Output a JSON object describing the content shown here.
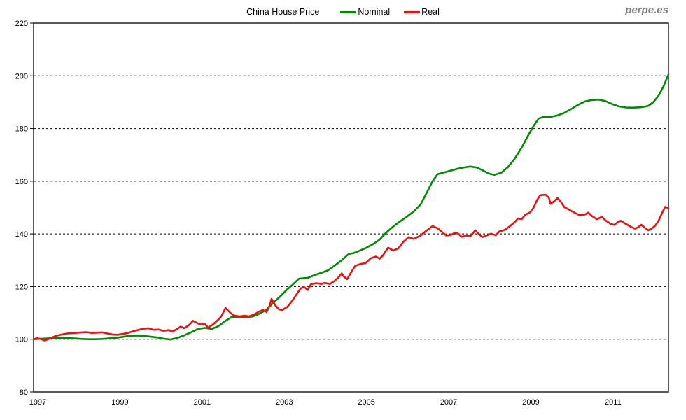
{
  "page": {
    "watermark": "perpe.es"
  },
  "chart_data": {
    "type": "line",
    "title": "China House Price",
    "xlabel": "",
    "ylabel": "",
    "x_range": [
      1997,
      2012.45
    ],
    "y_range": [
      80,
      220
    ],
    "x_ticks": [
      1997,
      1999,
      2001,
      2003,
      2005,
      2007,
      2009,
      2011
    ],
    "y_ticks": [
      80,
      100,
      120,
      140,
      160,
      180,
      200,
      220
    ],
    "grid": "horizontal-dashed",
    "legend_position": "top",
    "series": [
      {
        "name": "Nominal",
        "color": "#008B00",
        "points": [
          [
            1997.0,
            100.0
          ],
          [
            1997.17,
            100.2
          ],
          [
            1997.33,
            100.3
          ],
          [
            1997.5,
            100.4
          ],
          [
            1997.67,
            100.5
          ],
          [
            1997.83,
            100.4
          ],
          [
            1998.0,
            100.3
          ],
          [
            1998.17,
            100.1
          ],
          [
            1998.33,
            100.0
          ],
          [
            1998.5,
            100.0
          ],
          [
            1998.67,
            100.1
          ],
          [
            1998.83,
            100.3
          ],
          [
            1999.0,
            100.5
          ],
          [
            1999.17,
            100.9
          ],
          [
            1999.33,
            101.3
          ],
          [
            1999.5,
            101.4
          ],
          [
            1999.67,
            101.3
          ],
          [
            1999.83,
            101.0
          ],
          [
            2000.0,
            100.7
          ],
          [
            2000.17,
            100.2
          ],
          [
            2000.33,
            99.9
          ],
          [
            2000.5,
            100.5
          ],
          [
            2000.67,
            101.5
          ],
          [
            2000.83,
            102.6
          ],
          [
            2001.0,
            103.9
          ],
          [
            2001.17,
            104.3
          ],
          [
            2001.33,
            103.9
          ],
          [
            2001.5,
            105.0
          ],
          [
            2001.67,
            107.0
          ],
          [
            2001.83,
            108.5
          ],
          [
            2002.0,
            108.5
          ],
          [
            2002.17,
            108.4
          ],
          [
            2002.33,
            108.6
          ],
          [
            2002.5,
            109.7
          ],
          [
            2002.67,
            111.3
          ],
          [
            2002.83,
            113.8
          ],
          [
            2003.0,
            116.2
          ],
          [
            2003.17,
            118.9
          ],
          [
            2003.33,
            121.1
          ],
          [
            2003.46,
            123.0
          ],
          [
            2003.58,
            123.2
          ],
          [
            2003.67,
            123.3
          ],
          [
            2003.83,
            124.3
          ],
          [
            2004.0,
            125.2
          ],
          [
            2004.17,
            126.2
          ],
          [
            2004.33,
            128.0
          ],
          [
            2004.5,
            130.0
          ],
          [
            2004.67,
            132.4
          ],
          [
            2004.79,
            132.7
          ],
          [
            2004.92,
            133.5
          ],
          [
            2005.08,
            134.6
          ],
          [
            2005.25,
            136.0
          ],
          [
            2005.42,
            137.8
          ],
          [
            2005.58,
            140.5
          ],
          [
            2005.75,
            142.8
          ],
          [
            2005.92,
            144.8
          ],
          [
            2006.08,
            146.5
          ],
          [
            2006.25,
            148.5
          ],
          [
            2006.42,
            151.2
          ],
          [
            2006.58,
            156.0
          ],
          [
            2006.71,
            160.0
          ],
          [
            2006.83,
            162.7
          ],
          [
            2007.0,
            163.4
          ],
          [
            2007.17,
            164.1
          ],
          [
            2007.33,
            164.8
          ],
          [
            2007.5,
            165.3
          ],
          [
            2007.63,
            165.6
          ],
          [
            2007.79,
            165.2
          ],
          [
            2007.92,
            164.2
          ],
          [
            2008.08,
            162.9
          ],
          [
            2008.21,
            162.4
          ],
          [
            2008.38,
            163.2
          ],
          [
            2008.54,
            165.3
          ],
          [
            2008.71,
            168.6
          ],
          [
            2008.88,
            172.8
          ],
          [
            2009.04,
            177.5
          ],
          [
            2009.17,
            181.0
          ],
          [
            2009.29,
            183.8
          ],
          [
            2009.42,
            184.5
          ],
          [
            2009.58,
            184.4
          ],
          [
            2009.75,
            185.0
          ],
          [
            2009.92,
            186.0
          ],
          [
            2010.08,
            187.4
          ],
          [
            2010.25,
            189.0
          ],
          [
            2010.42,
            190.3
          ],
          [
            2010.58,
            190.8
          ],
          [
            2010.75,
            191.0
          ],
          [
            2010.92,
            190.4
          ],
          [
            2011.08,
            189.3
          ],
          [
            2011.25,
            188.4
          ],
          [
            2011.42,
            188.0
          ],
          [
            2011.58,
            187.9
          ],
          [
            2011.79,
            188.1
          ],
          [
            2011.96,
            188.6
          ],
          [
            2012.08,
            190.0
          ],
          [
            2012.21,
            192.5
          ],
          [
            2012.33,
            196.0
          ],
          [
            2012.45,
            200.5
          ]
        ]
      },
      {
        "name": "Real",
        "color": "#EE1010",
        "points": [
          [
            1997.0,
            100.0
          ],
          [
            1997.08,
            100.4
          ],
          [
            1997.17,
            100.1
          ],
          [
            1997.27,
            99.5
          ],
          [
            1997.38,
            100.2
          ],
          [
            1997.5,
            101.0
          ],
          [
            1997.58,
            101.4
          ],
          [
            1997.71,
            101.9
          ],
          [
            1997.83,
            102.2
          ],
          [
            1998.0,
            102.4
          ],
          [
            1998.17,
            102.6
          ],
          [
            1998.29,
            102.7
          ],
          [
            1998.42,
            102.4
          ],
          [
            1998.54,
            102.5
          ],
          [
            1998.67,
            102.6
          ],
          [
            1998.79,
            102.2
          ],
          [
            1998.92,
            101.8
          ],
          [
            1999.04,
            101.7
          ],
          [
            1999.17,
            102.0
          ],
          [
            1999.29,
            102.4
          ],
          [
            1999.42,
            103.0
          ],
          [
            1999.54,
            103.5
          ],
          [
            1999.67,
            104.0
          ],
          [
            1999.79,
            104.2
          ],
          [
            1999.92,
            103.6
          ],
          [
            2000.04,
            103.7
          ],
          [
            2000.17,
            103.2
          ],
          [
            2000.29,
            103.5
          ],
          [
            2000.38,
            102.9
          ],
          [
            2000.5,
            104.0
          ],
          [
            2000.58,
            104.8
          ],
          [
            2000.67,
            104.2
          ],
          [
            2000.79,
            105.5
          ],
          [
            2000.88,
            107.0
          ],
          [
            2001.0,
            106.0
          ],
          [
            2001.08,
            105.6
          ],
          [
            2001.17,
            105.8
          ],
          [
            2001.25,
            104.4
          ],
          [
            2001.38,
            105.8
          ],
          [
            2001.5,
            107.5
          ],
          [
            2001.58,
            109.0
          ],
          [
            2001.67,
            111.9
          ],
          [
            2001.79,
            110.0
          ],
          [
            2001.88,
            109.0
          ],
          [
            2002.0,
            108.7
          ],
          [
            2002.13,
            108.9
          ],
          [
            2002.25,
            108.7
          ],
          [
            2002.38,
            109.5
          ],
          [
            2002.5,
            110.6
          ],
          [
            2002.58,
            111.1
          ],
          [
            2002.67,
            110.3
          ],
          [
            2002.75,
            113.0
          ],
          [
            2002.79,
            115.3
          ],
          [
            2002.88,
            113.0
          ],
          [
            2002.96,
            111.5
          ],
          [
            2003.04,
            111.0
          ],
          [
            2003.17,
            112.2
          ],
          [
            2003.29,
            114.5
          ],
          [
            2003.42,
            117.5
          ],
          [
            2003.5,
            119.3
          ],
          [
            2003.58,
            119.9
          ],
          [
            2003.67,
            118.7
          ],
          [
            2003.75,
            120.9
          ],
          [
            2003.88,
            121.3
          ],
          [
            2004.0,
            121.0
          ],
          [
            2004.08,
            121.4
          ],
          [
            2004.21,
            121.0
          ],
          [
            2004.33,
            122.2
          ],
          [
            2004.42,
            123.5
          ],
          [
            2004.5,
            125.0
          ],
          [
            2004.54,
            124.0
          ],
          [
            2004.63,
            122.8
          ],
          [
            2004.75,
            126.0
          ],
          [
            2004.83,
            127.9
          ],
          [
            2004.96,
            128.6
          ],
          [
            2005.08,
            128.9
          ],
          [
            2005.21,
            130.8
          ],
          [
            2005.33,
            131.4
          ],
          [
            2005.42,
            130.6
          ],
          [
            2005.5,
            131.8
          ],
          [
            2005.63,
            134.8
          ],
          [
            2005.75,
            133.7
          ],
          [
            2005.88,
            134.5
          ],
          [
            2006.0,
            137.0
          ],
          [
            2006.13,
            138.8
          ],
          [
            2006.25,
            138.1
          ],
          [
            2006.42,
            139.4
          ],
          [
            2006.54,
            141.0
          ],
          [
            2006.71,
            143.0
          ],
          [
            2006.83,
            142.2
          ],
          [
            2006.92,
            141.0
          ],
          [
            2007.04,
            139.4
          ],
          [
            2007.17,
            139.7
          ],
          [
            2007.25,
            140.5
          ],
          [
            2007.33,
            140.1
          ],
          [
            2007.42,
            138.9
          ],
          [
            2007.54,
            139.4
          ],
          [
            2007.63,
            139.1
          ],
          [
            2007.75,
            141.4
          ],
          [
            2007.83,
            140.0
          ],
          [
            2007.92,
            138.8
          ],
          [
            2008.04,
            139.5
          ],
          [
            2008.13,
            140.1
          ],
          [
            2008.25,
            139.5
          ],
          [
            2008.33,
            140.9
          ],
          [
            2008.46,
            141.5
          ],
          [
            2008.58,
            142.8
          ],
          [
            2008.71,
            144.5
          ],
          [
            2008.79,
            145.9
          ],
          [
            2008.88,
            145.6
          ],
          [
            2008.96,
            147.2
          ],
          [
            2009.08,
            148.2
          ],
          [
            2009.17,
            150.0
          ],
          [
            2009.25,
            152.8
          ],
          [
            2009.33,
            154.7
          ],
          [
            2009.46,
            154.9
          ],
          [
            2009.54,
            153.8
          ],
          [
            2009.58,
            151.4
          ],
          [
            2009.67,
            152.4
          ],
          [
            2009.75,
            153.7
          ],
          [
            2009.83,
            152.2
          ],
          [
            2009.92,
            150.1
          ],
          [
            2010.0,
            149.5
          ],
          [
            2010.08,
            148.8
          ],
          [
            2010.17,
            148.0
          ],
          [
            2010.29,
            147.1
          ],
          [
            2010.42,
            147.4
          ],
          [
            2010.5,
            148.1
          ],
          [
            2010.58,
            146.9
          ],
          [
            2010.71,
            145.6
          ],
          [
            2010.83,
            146.5
          ],
          [
            2010.92,
            145.1
          ],
          [
            2011.04,
            143.9
          ],
          [
            2011.13,
            143.4
          ],
          [
            2011.21,
            144.4
          ],
          [
            2011.29,
            145.0
          ],
          [
            2011.38,
            144.1
          ],
          [
            2011.46,
            143.4
          ],
          [
            2011.54,
            142.7
          ],
          [
            2011.63,
            142.0
          ],
          [
            2011.71,
            142.5
          ],
          [
            2011.79,
            143.5
          ],
          [
            2011.88,
            142.3
          ],
          [
            2011.96,
            141.4
          ],
          [
            2012.04,
            142.0
          ],
          [
            2012.13,
            143.2
          ],
          [
            2012.21,
            145.0
          ],
          [
            2012.29,
            147.8
          ],
          [
            2012.37,
            150.3
          ],
          [
            2012.45,
            149.8
          ]
        ]
      }
    ]
  }
}
